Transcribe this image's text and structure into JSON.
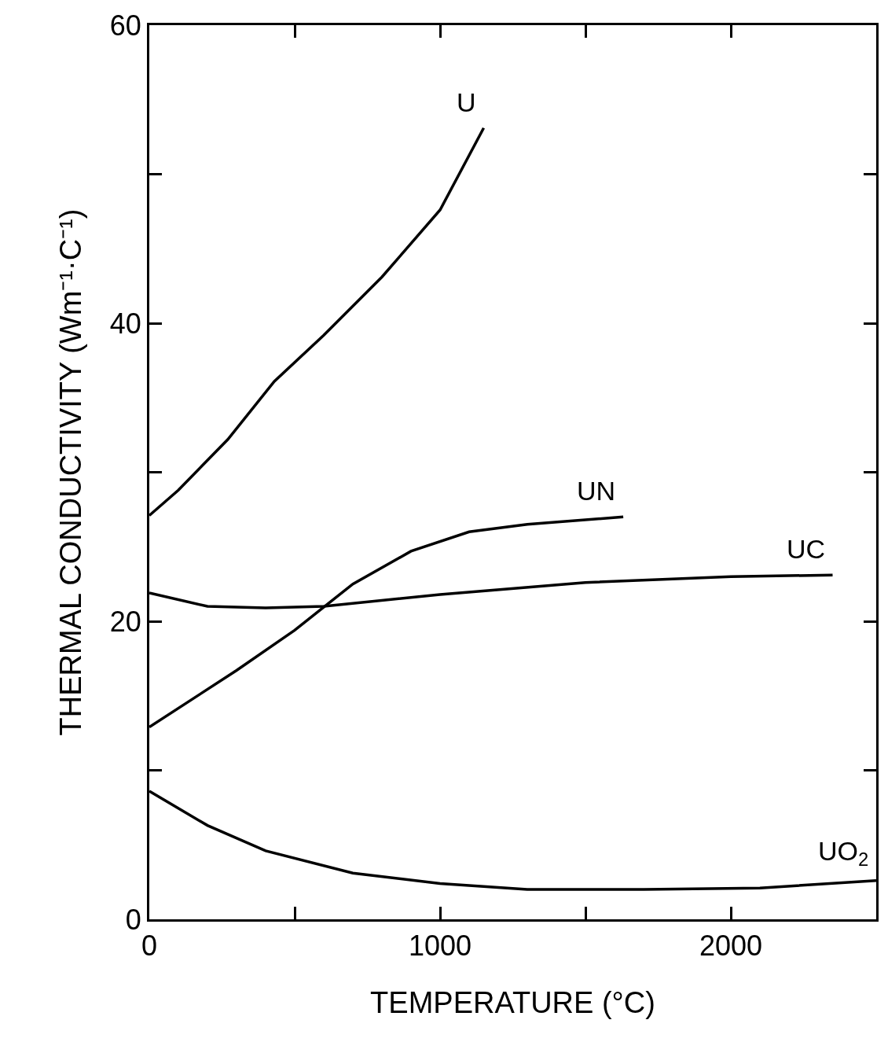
{
  "chart_data": {
    "type": "line",
    "xlabel": "TEMPERATURE (°C)",
    "ylabel": "THERMAL CONDUCTIVITY (Wm⁻¹·C⁻¹)",
    "xlim": [
      0,
      2500
    ],
    "ylim": [
      0,
      60
    ],
    "xticks": [
      0,
      {
        "value": 500,
        "label": null
      },
      1000,
      {
        "value": 1500,
        "label": null
      },
      2000
    ],
    "yticks": [
      0,
      {
        "value": 10,
        "label": null
      },
      20,
      {
        "value": 30,
        "label": null
      },
      40,
      {
        "value": 50,
        "label": null
      },
      60
    ],
    "legend": false,
    "marker": "none",
    "line_style": "solid",
    "series": [
      {
        "name": "U",
        "color": "#000000",
        "x": [
          0,
          100,
          270,
          430,
          600,
          800,
          1000,
          1150
        ],
        "values": [
          27.1,
          28.8,
          32.2,
          36.1,
          39.2,
          43.1,
          47.6,
          53.1
        ]
      },
      {
        "name": "UN",
        "color": "#000000",
        "x": [
          0,
          300,
          500,
          700,
          900,
          1100,
          1300,
          1630
        ],
        "values": [
          12.9,
          16.7,
          19.4,
          22.5,
          24.7,
          26.0,
          26.5,
          27.0
        ]
      },
      {
        "name": "UC",
        "color": "#000000",
        "x": [
          0,
          200,
          400,
          600,
          1000,
          1500,
          2000,
          2350
        ],
        "values": [
          21.9,
          21.0,
          20.9,
          21.0,
          21.8,
          22.6,
          23.0,
          23.1
        ]
      },
      {
        "name": "UO$_{2}$",
        "color": "#000000",
        "x": [
          0,
          200,
          400,
          700,
          1000,
          1300,
          1700,
          2100,
          2500
        ],
        "values": [
          8.6,
          6.3,
          4.6,
          3.1,
          2.4,
          2.0,
          2.0,
          2.1,
          2.6
        ]
      }
    ]
  }
}
